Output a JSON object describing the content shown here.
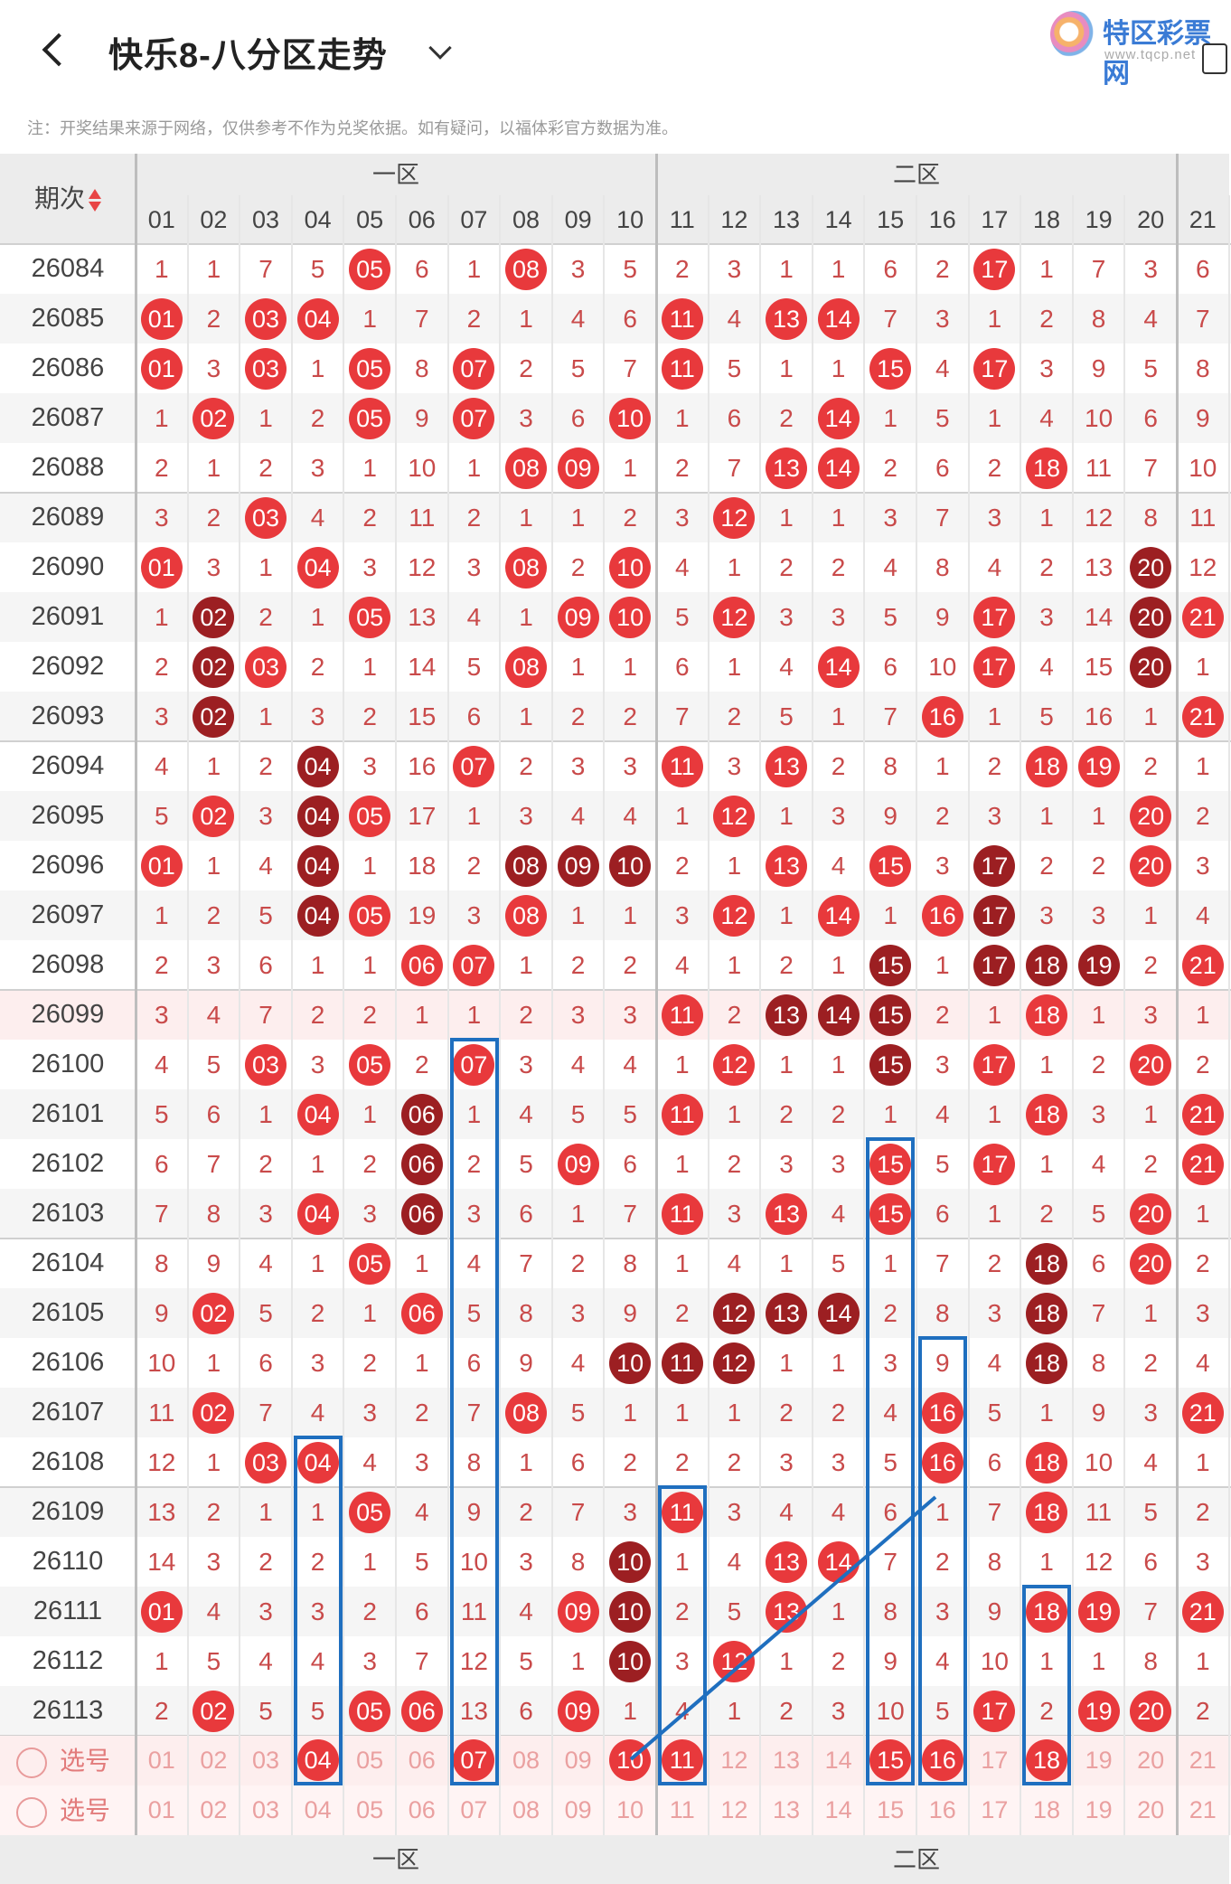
{
  "header": {
    "title": "快乐8-八分区走势",
    "logo_text": "特区彩票网",
    "logo_url": "www.tqcp.net"
  },
  "note": "注：开奖结果来源于网络，仅供参考不作为兑奖依据。如有疑问，以福体彩官方数据为准。",
  "table": {
    "period_header": "期次",
    "zones": [
      "一区",
      "二区"
    ],
    "columns": [
      "01",
      "02",
      "03",
      "04",
      "05",
      "06",
      "07",
      "08",
      "09",
      "10",
      "11",
      "12",
      "13",
      "14",
      "15",
      "16",
      "17",
      "18",
      "19",
      "20",
      "21"
    ],
    "rows": [
      {
        "period": "26084",
        "cells": [
          "1",
          "1",
          "7",
          "5",
          "05",
          "6",
          "1",
          "08",
          "3",
          "5",
          "2",
          "3",
          "1",
          "1",
          "6",
          "2",
          "17",
          "1",
          "7",
          "3",
          "6"
        ],
        "hits": [
          4,
          7,
          16
        ]
      },
      {
        "period": "26085",
        "cells": [
          "01",
          "2",
          "03",
          "04",
          "1",
          "7",
          "2",
          "1",
          "4",
          "6",
          "11",
          "4",
          "13",
          "14",
          "7",
          "3",
          "1",
          "2",
          "8",
          "4",
          "7"
        ],
        "hits": [
          0,
          2,
          3,
          10,
          12,
          13
        ]
      },
      {
        "period": "26086",
        "cells": [
          "01",
          "3",
          "03",
          "1",
          "05",
          "8",
          "07",
          "2",
          "5",
          "7",
          "11",
          "5",
          "1",
          "1",
          "15",
          "4",
          "17",
          "3",
          "9",
          "5",
          "8"
        ],
        "hits": [
          0,
          2,
          4,
          6,
          10,
          14,
          16
        ]
      },
      {
        "period": "26087",
        "cells": [
          "1",
          "02",
          "1",
          "2",
          "05",
          "9",
          "07",
          "3",
          "6",
          "10",
          "1",
          "6",
          "2",
          "14",
          "1",
          "5",
          "1",
          "4",
          "10",
          "6",
          "9"
        ],
        "hits": [
          1,
          4,
          6,
          9,
          13
        ]
      },
      {
        "period": "26088",
        "cells": [
          "2",
          "1",
          "2",
          "3",
          "1",
          "10",
          "1",
          "08",
          "09",
          "1",
          "2",
          "7",
          "13",
          "14",
          "2",
          "6",
          "2",
          "18",
          "11",
          "7",
          "10"
        ],
        "hits": [
          7,
          8,
          12,
          13,
          17
        ]
      },
      {
        "period": "26089",
        "cells": [
          "3",
          "2",
          "03",
          "4",
          "2",
          "11",
          "2",
          "1",
          "1",
          "2",
          "3",
          "12",
          "1",
          "1",
          "3",
          "7",
          "3",
          "1",
          "12",
          "8",
          "11"
        ],
        "hits": [
          2,
          11
        ]
      },
      {
        "period": "26090",
        "cells": [
          "01",
          "3",
          "1",
          "04",
          "3",
          "12",
          "3",
          "08",
          "2",
          "10",
          "4",
          "1",
          "2",
          "2",
          "4",
          "8",
          "4",
          "2",
          "13",
          "20",
          "12"
        ],
        "hits": [
          0,
          3,
          7,
          9,
          19
        ],
        "dark": [
          19
        ]
      },
      {
        "period": "26091",
        "cells": [
          "1",
          "02",
          "2",
          "1",
          "05",
          "13",
          "4",
          "1",
          "09",
          "10",
          "5",
          "12",
          "3",
          "3",
          "5",
          "9",
          "17",
          "3",
          "14",
          "20",
          "21"
        ],
        "hits": [
          1,
          4,
          8,
          9,
          11,
          16,
          19,
          20
        ],
        "dark": [
          1,
          19
        ]
      },
      {
        "period": "26092",
        "cells": [
          "2",
          "02",
          "03",
          "2",
          "1",
          "14",
          "5",
          "08",
          "1",
          "1",
          "6",
          "1",
          "4",
          "14",
          "6",
          "10",
          "17",
          "4",
          "15",
          "20",
          "1"
        ],
        "hits": [
          1,
          2,
          7,
          13,
          16,
          19
        ],
        "dark": [
          1,
          19
        ]
      },
      {
        "period": "26093",
        "cells": [
          "3",
          "02",
          "1",
          "3",
          "2",
          "15",
          "6",
          "1",
          "2",
          "2",
          "7",
          "2",
          "5",
          "1",
          "7",
          "16",
          "1",
          "5",
          "16",
          "1",
          "21"
        ],
        "hits": [
          1,
          15,
          20
        ],
        "dark": [
          1
        ]
      },
      {
        "period": "26094",
        "cells": [
          "4",
          "1",
          "2",
          "04",
          "3",
          "16",
          "07",
          "2",
          "3",
          "3",
          "11",
          "3",
          "13",
          "2",
          "8",
          "1",
          "2",
          "18",
          "19",
          "2",
          "1"
        ],
        "hits": [
          3,
          6,
          10,
          12,
          17,
          18
        ],
        "dark": [
          3
        ]
      },
      {
        "period": "26095",
        "cells": [
          "5",
          "02",
          "3",
          "04",
          "05",
          "17",
          "1",
          "3",
          "4",
          "4",
          "1",
          "12",
          "1",
          "3",
          "9",
          "2",
          "3",
          "1",
          "1",
          "20",
          "2"
        ],
        "hits": [
          1,
          3,
          4,
          11,
          19
        ],
        "dark": [
          3
        ]
      },
      {
        "period": "26096",
        "cells": [
          "01",
          "1",
          "4",
          "04",
          "1",
          "18",
          "2",
          "08",
          "09",
          "10",
          "2",
          "1",
          "13",
          "4",
          "15",
          "3",
          "17",
          "2",
          "2",
          "20",
          "3"
        ],
        "hits": [
          0,
          3,
          7,
          8,
          9,
          12,
          14,
          16,
          19
        ],
        "dark": [
          3,
          7,
          8,
          9,
          16
        ]
      },
      {
        "period": "26097",
        "cells": [
          "1",
          "2",
          "5",
          "04",
          "05",
          "19",
          "3",
          "08",
          "1",
          "1",
          "3",
          "12",
          "1",
          "14",
          "1",
          "16",
          "17",
          "3",
          "3",
          "1",
          "4"
        ],
        "hits": [
          3,
          4,
          7,
          11,
          13,
          15,
          16
        ],
        "dark": [
          3,
          16
        ]
      },
      {
        "period": "26098",
        "cells": [
          "2",
          "3",
          "6",
          "1",
          "1",
          "06",
          "07",
          "1",
          "2",
          "2",
          "4",
          "1",
          "2",
          "1",
          "15",
          "1",
          "17",
          "18",
          "19",
          "2",
          "21"
        ],
        "hits": [
          5,
          6,
          14,
          16,
          17,
          18,
          20
        ],
        "dark": [
          14,
          16,
          17,
          18
        ]
      },
      {
        "period": "26099",
        "cells": [
          "3",
          "4",
          "7",
          "2",
          "2",
          "1",
          "1",
          "2",
          "3",
          "3",
          "11",
          "2",
          "13",
          "14",
          "15",
          "2",
          "1",
          "18",
          "1",
          "3",
          "1"
        ],
        "hits": [
          10,
          12,
          13,
          14,
          17
        ],
        "dark": [
          12,
          13,
          14
        ]
      },
      {
        "period": "26100",
        "cells": [
          "4",
          "5",
          "03",
          "3",
          "05",
          "2",
          "07",
          "3",
          "4",
          "4",
          "1",
          "12",
          "1",
          "1",
          "15",
          "3",
          "17",
          "1",
          "2",
          "20",
          "2"
        ],
        "hits": [
          2,
          4,
          6,
          11,
          14,
          16,
          19
        ],
        "dark": [
          14
        ]
      },
      {
        "period": "26101",
        "cells": [
          "5",
          "6",
          "1",
          "04",
          "1",
          "06",
          "1",
          "4",
          "5",
          "5",
          "11",
          "1",
          "2",
          "2",
          "1",
          "4",
          "1",
          "18",
          "3",
          "1",
          "21"
        ],
        "hits": [
          3,
          5,
          10,
          17,
          20
        ],
        "dark": [
          5
        ]
      },
      {
        "period": "26102",
        "cells": [
          "6",
          "7",
          "2",
          "1",
          "2",
          "06",
          "2",
          "5",
          "09",
          "6",
          "1",
          "2",
          "3",
          "3",
          "15",
          "5",
          "17",
          "1",
          "4",
          "2",
          "21"
        ],
        "hits": [
          5,
          8,
          14,
          16,
          20
        ],
        "dark": [
          5
        ]
      },
      {
        "period": "26103",
        "cells": [
          "7",
          "8",
          "3",
          "04",
          "3",
          "06",
          "3",
          "6",
          "1",
          "7",
          "11",
          "3",
          "13",
          "4",
          "15",
          "6",
          "1",
          "2",
          "5",
          "20",
          "1"
        ],
        "hits": [
          3,
          5,
          10,
          12,
          14,
          19
        ],
        "dark": [
          5
        ]
      },
      {
        "period": "26104",
        "cells": [
          "8",
          "9",
          "4",
          "1",
          "05",
          "1",
          "4",
          "7",
          "2",
          "8",
          "1",
          "4",
          "1",
          "5",
          "1",
          "7",
          "2",
          "18",
          "6",
          "20",
          "2"
        ],
        "hits": [
          4,
          17,
          19
        ],
        "dark": [
          17
        ]
      },
      {
        "period": "26105",
        "cells": [
          "9",
          "02",
          "5",
          "2",
          "1",
          "06",
          "5",
          "8",
          "3",
          "9",
          "2",
          "12",
          "13",
          "14",
          "2",
          "8",
          "3",
          "18",
          "7",
          "1",
          "3"
        ],
        "hits": [
          1,
          5,
          11,
          12,
          13,
          17
        ],
        "dark": [
          11,
          12,
          13,
          17
        ]
      },
      {
        "period": "26106",
        "cells": [
          "10",
          "1",
          "6",
          "3",
          "2",
          "1",
          "6",
          "9",
          "4",
          "10",
          "11",
          "12",
          "1",
          "1",
          "3",
          "9",
          "4",
          "18",
          "8",
          "2",
          "4"
        ],
        "hits": [
          9,
          10,
          11,
          17
        ],
        "dark": [
          9,
          10,
          11,
          17
        ]
      },
      {
        "period": "26107",
        "cells": [
          "11",
          "02",
          "7",
          "4",
          "3",
          "2",
          "7",
          "08",
          "5",
          "1",
          "1",
          "1",
          "2",
          "2",
          "4",
          "16",
          "5",
          "1",
          "9",
          "3",
          "21"
        ],
        "hits": [
          1,
          7,
          15,
          20
        ]
      },
      {
        "period": "26108",
        "cells": [
          "12",
          "1",
          "03",
          "04",
          "4",
          "3",
          "8",
          "1",
          "6",
          "2",
          "2",
          "2",
          "3",
          "3",
          "5",
          "16",
          "6",
          "18",
          "10",
          "4",
          "1"
        ],
        "hits": [
          2,
          3,
          15,
          17
        ]
      },
      {
        "period": "26109",
        "cells": [
          "13",
          "2",
          "1",
          "1",
          "05",
          "4",
          "9",
          "2",
          "7",
          "3",
          "11",
          "3",
          "4",
          "4",
          "6",
          "1",
          "7",
          "18",
          "11",
          "5",
          "2"
        ],
        "hits": [
          4,
          10,
          17
        ]
      },
      {
        "period": "26110",
        "cells": [
          "14",
          "3",
          "2",
          "2",
          "1",
          "5",
          "10",
          "3",
          "8",
          "10",
          "1",
          "4",
          "13",
          "14",
          "7",
          "2",
          "8",
          "1",
          "12",
          "6",
          "3"
        ],
        "hits": [
          9,
          12,
          13
        ],
        "dark": [
          9
        ]
      },
      {
        "period": "26111",
        "cells": [
          "01",
          "4",
          "3",
          "3",
          "2",
          "6",
          "11",
          "4",
          "09",
          "10",
          "2",
          "5",
          "13",
          "1",
          "8",
          "3",
          "9",
          "18",
          "19",
          "7",
          "21"
        ],
        "hits": [
          0,
          8,
          9,
          12,
          17,
          18,
          20
        ],
        "dark": [
          9
        ]
      },
      {
        "period": "26112",
        "cells": [
          "1",
          "5",
          "4",
          "4",
          "3",
          "7",
          "12",
          "5",
          "1",
          "10",
          "3",
          "12",
          "1",
          "2",
          "9",
          "4",
          "10",
          "1",
          "1",
          "8",
          "1"
        ],
        "hits": [
          9,
          11
        ],
        "dark": [
          9
        ]
      },
      {
        "period": "26113",
        "cells": [
          "2",
          "02",
          "5",
          "5",
          "05",
          "06",
          "13",
          "6",
          "09",
          "1",
          "4",
          "1",
          "2",
          "3",
          "10",
          "5",
          "17",
          "2",
          "19",
          "20",
          "2"
        ],
        "hits": [
          1,
          4,
          5,
          8,
          16,
          18,
          19
        ]
      }
    ],
    "select_rows": [
      {
        "label": "选号",
        "hits": [
          3,
          6,
          9,
          10,
          14,
          15,
          17
        ]
      },
      {
        "label": "选号",
        "hits": []
      }
    ]
  },
  "colors": {
    "ball": "#e8393c",
    "ball_dark": "#9c1f22",
    "box": "#1f6fbf"
  }
}
